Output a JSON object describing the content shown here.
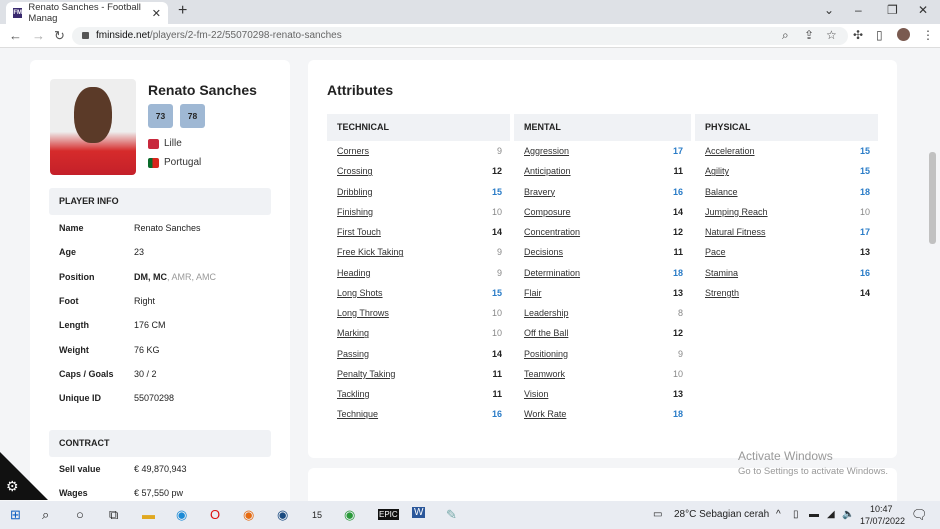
{
  "browser": {
    "tab_title": "Renato Sanches - Football Manag",
    "favicon": "FM",
    "url_host": "fminside.net",
    "url_path": "/players/2-fm-22/55070298-renato-sanches"
  },
  "player": {
    "name": "Renato Sanches",
    "ratings": [
      "73",
      "78"
    ],
    "club": "Lille",
    "nation": "Portugal"
  },
  "player_info": {
    "title": "PLAYER INFO",
    "rows": [
      {
        "label": "Name",
        "value": "Renato Sanches"
      },
      {
        "label": "Age",
        "value": "23"
      },
      {
        "label": "Position",
        "value": "DM, MC",
        "value_dim": ", AMR, AMC"
      },
      {
        "label": "Foot",
        "value": "Right"
      },
      {
        "label": "Length",
        "value": "176 CM"
      },
      {
        "label": "Weight",
        "value": "76 KG"
      },
      {
        "label": "Caps / Goals",
        "value": "30 / 2"
      },
      {
        "label": "Unique ID",
        "value": "55070298"
      }
    ]
  },
  "contract": {
    "title": "CONTRACT",
    "rows": [
      {
        "label": "Sell value",
        "value": "€ 49,870,943"
      },
      {
        "label": "Wages",
        "value": "€ 57,550 pw"
      }
    ]
  },
  "attributes": {
    "title": "Attributes",
    "columns": [
      {
        "title": "TECHNICAL",
        "items": [
          [
            "Corners",
            "9"
          ],
          [
            "Crossing",
            "12"
          ],
          [
            "Dribbling",
            "15"
          ],
          [
            "Finishing",
            "10"
          ],
          [
            "First Touch",
            "14"
          ],
          [
            "Free Kick Taking",
            "9"
          ],
          [
            "Heading",
            "9"
          ],
          [
            "Long Shots",
            "15"
          ],
          [
            "Long Throws",
            "10"
          ],
          [
            "Marking",
            "10"
          ],
          [
            "Passing",
            "14"
          ],
          [
            "Penalty Taking",
            "11"
          ],
          [
            "Tackling",
            "11"
          ],
          [
            "Technique",
            "16"
          ]
        ]
      },
      {
        "title": "MENTAL",
        "items": [
          [
            "Aggression",
            "17"
          ],
          [
            "Anticipation",
            "11"
          ],
          [
            "Bravery",
            "16"
          ],
          [
            "Composure",
            "14"
          ],
          [
            "Concentration",
            "12"
          ],
          [
            "Decisions",
            "11"
          ],
          [
            "Determination",
            "18"
          ],
          [
            "Flair",
            "13"
          ],
          [
            "Leadership",
            "8"
          ],
          [
            "Off the Ball",
            "12"
          ],
          [
            "Positioning",
            "9"
          ],
          [
            "Teamwork",
            "10"
          ],
          [
            "Vision",
            "13"
          ],
          [
            "Work Rate",
            "18"
          ]
        ]
      },
      {
        "title": "PHYSICAL",
        "items": [
          [
            "Acceleration",
            "15"
          ],
          [
            "Agility",
            "15"
          ],
          [
            "Balance",
            "18"
          ],
          [
            "Jumping Reach",
            "10"
          ],
          [
            "Natural Fitness",
            "17"
          ],
          [
            "Pace",
            "13"
          ],
          [
            "Stamina",
            "16"
          ],
          [
            "Strength",
            "14"
          ]
        ]
      }
    ]
  },
  "watermark": {
    "line1": "Activate Windows",
    "line2": "Go to Settings to activate Windows."
  },
  "taskbar": {
    "weather": "28°C  Sebagian cerah",
    "time": "10:47",
    "date": "17/07/2022",
    "badge": "15"
  },
  "colors": {
    "high": "#2a7cc7",
    "rating_bg": "#9fb8d4"
  }
}
